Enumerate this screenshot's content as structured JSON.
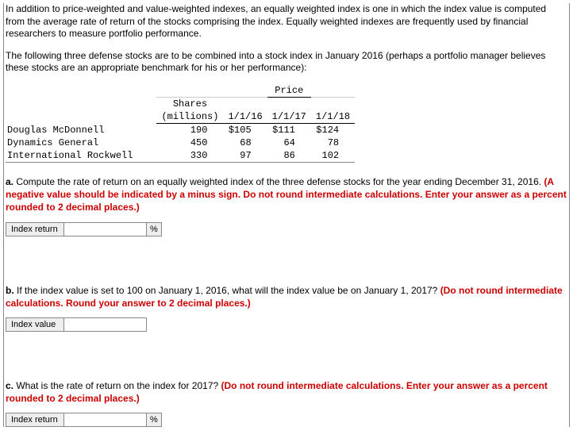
{
  "intro1": "In addition to price-weighted and value-weighted indexes, an equally weighted index is one in which the index value is computed from the average rate of return of the stocks comprising the index. Equally weighted indexes are frequently used by financial researchers to measure portfolio performance.",
  "intro2": "The following three defense stocks are to be combined into a stock index in January 2016 (perhaps a portfolio manager believes these stocks are an appropriate benchmark for his or her performance):",
  "table": {
    "price_header": "Price",
    "shares_line1": "Shares",
    "shares_line2": "(millions)",
    "date_cols": [
      "1/1/16",
      "1/1/17",
      "1/1/18"
    ],
    "rows": [
      {
        "label": "Douglas McDonnell",
        "shares": "190",
        "p16": "$105",
        "p17": "$111",
        "p18": "$124"
      },
      {
        "label": "Dynamics General",
        "shares": "450",
        "p16": "68",
        "p17": "64",
        "p18": "78"
      },
      {
        "label": "International Rockwell",
        "shares": "330",
        "p16": "97",
        "p17": "86",
        "p18": "102"
      }
    ]
  },
  "qa": {
    "lead": "a. ",
    "text": "Compute the rate of return on an equally weighted index of the three defense stocks for the year ending December 31, 2016. ",
    "red": "(A negative value should be indicated by a minus sign. Do not round intermediate calculations. Enter your answer as a percent rounded to 2 decimal places.)",
    "label": "Index return",
    "unit": "%"
  },
  "qb": {
    "lead": "b. ",
    "text": "If the index value is set to 100 on January 1, 2016, what will the index value be on January 1, 2017? ",
    "red": "(Do not round intermediate calculations. Round your answer to 2 decimal places.)",
    "label": "Index value"
  },
  "qc": {
    "lead": "c. ",
    "text": "What is the rate of return on the index for 2017? ",
    "red": "(Do not round intermediate calculations. Enter your answer as a percent rounded to 2 decimal places.)",
    "label": "Index return",
    "unit": "%"
  }
}
